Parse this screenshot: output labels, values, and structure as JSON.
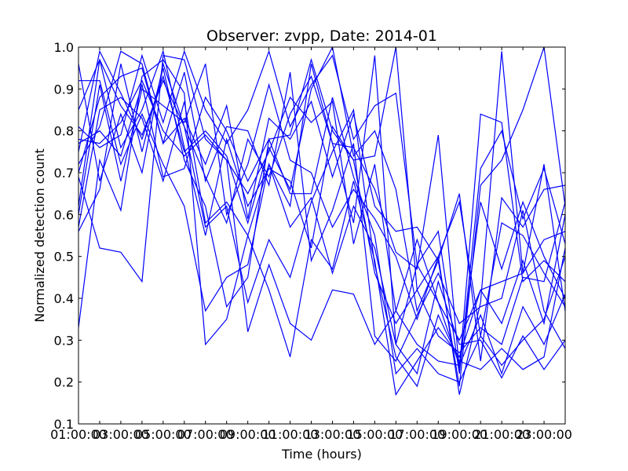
{
  "chart_data": {
    "type": "line",
    "title": "Observer: zvpp, Date: 2014-01",
    "xlabel": "Time (hours)",
    "ylabel": "Normalized detection count",
    "xlim": [
      1,
      24
    ],
    "ylim": [
      0.1,
      1.0
    ],
    "grid": false,
    "line_color": "#0000ff",
    "x_ticks": [
      {
        "v": 1,
        "label": "01:00:00"
      },
      {
        "v": 2,
        "label": "03:00:00"
      },
      {
        "v": 3,
        "label": "03:00:00"
      },
      {
        "v": 4,
        "label": "05:00:00"
      },
      {
        "v": 5,
        "label": "05:00:00"
      },
      {
        "v": 6,
        "label": "07:00:00"
      },
      {
        "v": 7,
        "label": "07:00:00"
      },
      {
        "v": 8,
        "label": "09:00:00"
      },
      {
        "v": 9,
        "label": "09:00:00"
      },
      {
        "v": 10,
        "label": "11:00:00"
      },
      {
        "v": 11,
        "label": "11:00:00"
      },
      {
        "v": 12,
        "label": "13:00:00"
      },
      {
        "v": 13,
        "label": "13:00:00"
      },
      {
        "v": 14,
        "label": "15:00:00"
      },
      {
        "v": 15,
        "label": "15:00:00"
      },
      {
        "v": 16,
        "label": "17:00:00"
      },
      {
        "v": 17,
        "label": "17:00:00"
      },
      {
        "v": 18,
        "label": "19:00:00"
      },
      {
        "v": 19,
        "label": "19:00:00"
      },
      {
        "v": 20,
        "label": "21:00:00"
      },
      {
        "v": 21,
        "label": "21:00:00"
      },
      {
        "v": 22,
        "label": "23:00:00"
      },
      {
        "v": 23,
        "label": "23:00:00"
      },
      {
        "v": 24,
        "label": "00:00:00"
      }
    ],
    "y_ticks": [
      {
        "v": 0.1,
        "label": "0.1"
      },
      {
        "v": 0.2,
        "label": "0.2"
      },
      {
        "v": 0.3,
        "label": "0.3"
      },
      {
        "v": 0.4,
        "label": "0.4"
      },
      {
        "v": 0.5,
        "label": "0.5"
      },
      {
        "v": 0.6,
        "label": "0.6"
      },
      {
        "v": 0.7,
        "label": "0.7"
      },
      {
        "v": 0.8,
        "label": "0.8"
      },
      {
        "v": 0.9,
        "label": "0.9"
      },
      {
        "v": 1.0,
        "label": "1.0"
      }
    ],
    "x": [
      1,
      2,
      3,
      4,
      5,
      6,
      7,
      8,
      9,
      10,
      11,
      12,
      13,
      14,
      15,
      16,
      17,
      18,
      19,
      20,
      21,
      22,
      23,
      24
    ],
    "series": [
      {
        "values": [
          0.33,
          0.73,
          0.61,
          0.93,
          0.97,
          0.89,
          0.29,
          0.35,
          0.55,
          0.42,
          0.26,
          0.54,
          0.47,
          0.68,
          0.49,
          0.17,
          0.25,
          0.33,
          0.26,
          0.42,
          0.44,
          0.46,
          0.54,
          0.56
        ]
      },
      {
        "values": [
          0.56,
          0.66,
          0.96,
          0.75,
          0.95,
          0.73,
          0.62,
          0.38,
          0.45,
          0.78,
          0.65,
          0.65,
          0.88,
          0.69,
          0.55,
          0.22,
          0.28,
          0.22,
          0.2,
          0.31,
          0.24,
          0.3,
          0.35,
          0.5
        ]
      },
      {
        "values": [
          0.69,
          0.52,
          0.51,
          0.44,
          0.98,
          0.97,
          0.78,
          0.73,
          0.32,
          0.48,
          0.34,
          0.3,
          0.42,
          0.41,
          0.29,
          0.37,
          0.29,
          0.25,
          0.24,
          0.36,
          0.22,
          0.38,
          0.29,
          0.41
        ]
      },
      {
        "values": [
          0.92,
          0.92,
          0.72,
          0.84,
          0.72,
          0.62,
          0.37,
          0.45,
          0.48,
          0.72,
          0.57,
          0.64,
          0.46,
          0.62,
          0.52,
          0.29,
          0.22,
          0.44,
          0.29,
          0.3,
          0.21,
          0.31,
          0.23,
          0.3
        ]
      },
      {
        "values": [
          0.85,
          0.97,
          0.86,
          0.79,
          0.92,
          0.81,
          0.57,
          0.62,
          0.39,
          0.54,
          0.45,
          0.63,
          0.75,
          0.85,
          0.48,
          0.26,
          0.19,
          0.36,
          0.25,
          0.23,
          0.28,
          0.23,
          0.26,
          0.52
        ]
      },
      {
        "values": [
          0.62,
          0.97,
          0.76,
          0.85,
          0.99,
          0.76,
          0.55,
          0.78,
          0.62,
          0.71,
          0.68,
          0.52,
          0.81,
          0.73,
          0.46,
          0.34,
          0.42,
          0.31,
          0.27,
          0.33,
          0.29,
          0.45,
          0.44,
          0.63
        ]
      },
      {
        "values": [
          0.72,
          0.81,
          0.99,
          0.96,
          0.77,
          0.94,
          0.68,
          0.81,
          0.8,
          0.67,
          0.94,
          0.49,
          0.61,
          0.77,
          0.31,
          0.25,
          0.36,
          0.46,
          0.34,
          0.38,
          0.4,
          0.61,
          0.37,
          0.28
        ]
      },
      {
        "values": [
          0.78,
          0.77,
          0.82,
          0.92,
          0.8,
          0.74,
          0.79,
          0.73,
          0.65,
          0.75,
          0.88,
          0.82,
          0.87,
          0.53,
          0.72,
          0.37,
          0.54,
          0.39,
          0.3,
          0.42,
          0.34,
          0.49,
          0.34,
          0.6
        ]
      },
      {
        "values": [
          0.96,
          0.68,
          0.84,
          0.7,
          0.96,
          0.81,
          0.69,
          0.58,
          0.78,
          0.69,
          0.84,
          0.93,
          0.77,
          0.58,
          0.98,
          0.29,
          0.48,
          0.39,
          0.24,
          0.63,
          0.47,
          0.63,
          0.5,
          0.4
        ]
      },
      {
        "values": [
          0.6,
          0.91,
          0.68,
          0.9,
          0.86,
          0.82,
          0.96,
          0.6,
          0.72,
          0.91,
          0.73,
          0.7,
          0.57,
          0.66,
          0.59,
          0.5,
          0.35,
          0.5,
          0.63,
          0.31,
          0.58,
          0.55,
          0.46,
          0.38
        ]
      },
      {
        "values": [
          0.57,
          0.85,
          0.88,
          0.83,
          0.68,
          0.87,
          0.58,
          0.63,
          0.55,
          0.72,
          0.62,
          0.96,
          0.77,
          0.76,
          0.66,
          0.51,
          0.47,
          0.79,
          0.23,
          0.84,
          0.82,
          0.44,
          0.49,
          0.44
        ]
      },
      {
        "values": [
          0.7,
          0.88,
          0.93,
          0.95,
          0.77,
          0.83,
          0.72,
          0.86,
          0.59,
          0.83,
          0.78,
          0.87,
          0.69,
          0.84,
          0.62,
          0.56,
          0.57,
          0.49,
          0.65,
          0.25,
          0.64,
          0.57,
          0.66,
          0.67
        ]
      },
      {
        "values": [
          0.81,
          0.76,
          0.79,
          0.98,
          0.82,
          0.99,
          0.85,
          0.77,
          0.85,
          0.99,
          0.81,
          0.91,
          0.98,
          0.78,
          0.86,
          0.89,
          0.48,
          0.56,
          0.22,
          0.71,
          0.8,
          0.59,
          0.71,
          0.53
        ]
      },
      {
        "values": [
          0.77,
          0.8,
          0.74,
          0.91,
          0.69,
          0.71,
          0.88,
          0.8,
          0.68,
          0.78,
          0.79,
          0.97,
          0.8,
          0.73,
          0.74,
          1.0,
          0.42,
          0.5,
          0.17,
          0.39,
          0.99,
          0.46,
          0.72,
          0.37
        ]
      },
      {
        "values": [
          0.75,
          0.99,
          0.89,
          0.78,
          0.93,
          0.75,
          0.8,
          0.74,
          0.58,
          0.76,
          0.66,
          0.9,
          1.0,
          0.74,
          0.8,
          0.66,
          0.37,
          0.49,
          0.19,
          0.67,
          0.73,
          0.85,
          1.0,
          0.62
        ]
      }
    ]
  }
}
